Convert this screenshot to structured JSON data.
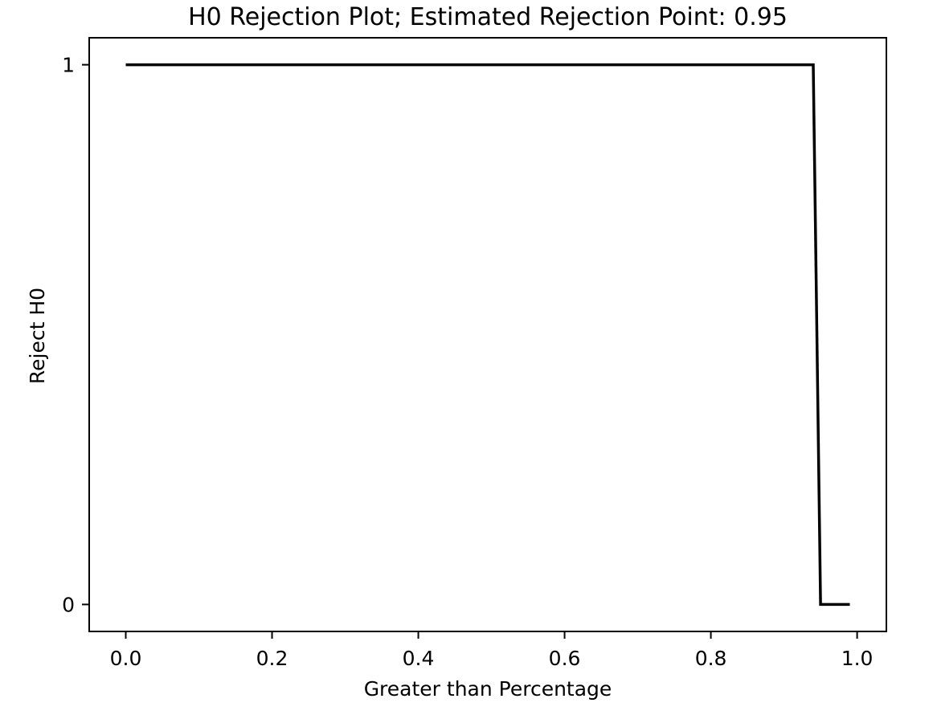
{
  "chart_data": {
    "type": "line",
    "title": "H0 Rejection Plot; Estimated Rejection Point: 0.95",
    "xlabel": "Greater than Percentage",
    "ylabel": "Reject H0",
    "xlim": [
      -0.05,
      1.04
    ],
    "ylim": [
      -0.05,
      1.05
    ],
    "xticks": [
      0.0,
      0.2,
      0.4,
      0.6,
      0.8,
      1.0
    ],
    "xtick_labels": [
      "0.0",
      "0.2",
      "0.4",
      "0.6",
      "0.8",
      "1.0"
    ],
    "yticks": [
      0,
      1
    ],
    "ytick_labels": [
      "0",
      "1"
    ],
    "grid": false,
    "legend": "none",
    "estimated_rejection_point": 0.95,
    "series": [
      {
        "color": "#000000",
        "x": [
          0.0,
          0.94,
          0.95,
          0.99
        ],
        "y": [
          1,
          1,
          0,
          0
        ]
      }
    ]
  }
}
